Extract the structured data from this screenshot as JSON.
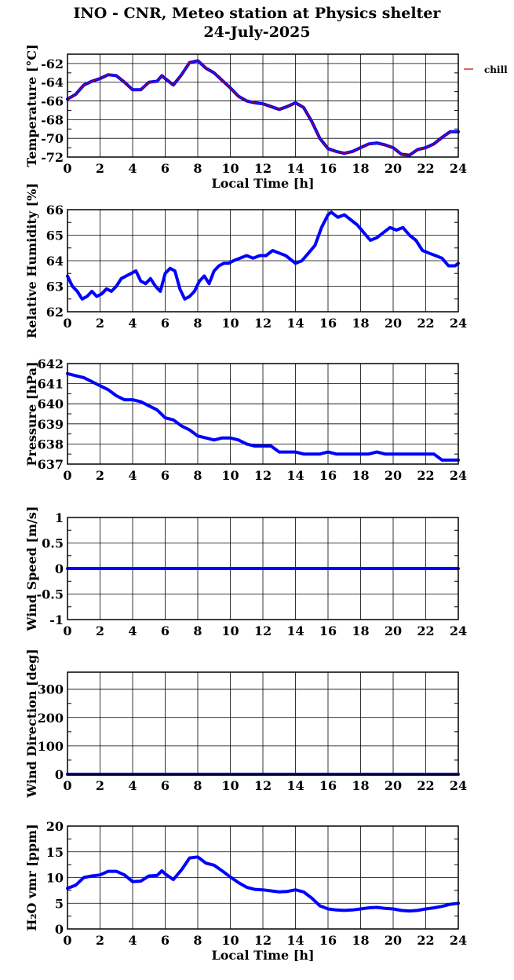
{
  "title": "INO - CNR, Meteo station at Physics shelter",
  "subtitle": "24-July-2025",
  "colors": {
    "series": "#0000ff",
    "chill": "#cc0000",
    "axes": "#000000"
  },
  "chart_data": [
    {
      "id": "temperature",
      "type": "line",
      "ylabel": "Temperature [°C]",
      "xlabel": "Local Time [h]",
      "xlim": [
        0,
        24
      ],
      "ylim": [
        -72,
        -61
      ],
      "yticks": [
        -72,
        -70,
        -68,
        -66,
        -64,
        -62
      ],
      "xticks": [
        0,
        2,
        4,
        6,
        8,
        10,
        12,
        14,
        16,
        18,
        20,
        22,
        24
      ],
      "grid": true,
      "legend": {
        "entries": [
          "chill"
        ],
        "placement": "right"
      },
      "series": [
        {
          "name": "chill",
          "x": [
            0,
            0.5,
            1,
            1.5,
            2,
            2.5,
            3,
            3.5,
            4,
            4.5,
            5,
            5.5,
            5.8,
            6,
            6.5,
            7,
            7.5,
            8,
            8.5,
            9,
            9.5,
            10,
            10.5,
            11,
            11.5,
            12,
            12.5,
            13,
            13.5,
            14,
            14.5,
            15,
            15.5,
            16,
            16.5,
            17,
            17.5,
            18,
            18.5,
            19,
            19.5,
            20,
            20.5,
            21,
            21.5,
            22,
            22.5,
            23,
            23.5,
            24
          ],
          "y": [
            -65.8,
            -65.3,
            -64.3,
            -63.9,
            -63.6,
            -63.2,
            -63.3,
            -64.0,
            -64.8,
            -64.8,
            -64.0,
            -63.9,
            -63.3,
            -63.6,
            -64.3,
            -63.2,
            -61.9,
            -61.7,
            -62.5,
            -63.0,
            -63.8,
            -64.6,
            -65.5,
            -66.0,
            -66.2,
            -66.3,
            -66.6,
            -66.9,
            -66.6,
            -66.2,
            -66.7,
            -68.2,
            -70.0,
            -71.1,
            -71.4,
            -71.6,
            -71.4,
            -71.0,
            -70.6,
            -70.5,
            -70.7,
            -71.0,
            -71.7,
            -71.8,
            -71.2,
            -71.0,
            -70.6,
            -69.9,
            -69.3,
            -69.3
          ]
        }
      ]
    },
    {
      "id": "humidity",
      "type": "line",
      "ylabel": "Relative Humidity [%]",
      "xlim": [
        0,
        24
      ],
      "ylim": [
        62,
        66
      ],
      "yticks": [
        62,
        63,
        64,
        65,
        66
      ],
      "xticks": [
        0,
        2,
        4,
        6,
        8,
        10,
        12,
        14,
        16,
        18,
        20,
        22,
        24
      ],
      "grid": true,
      "series": [
        {
          "x": [
            0,
            0.3,
            0.6,
            0.9,
            1.2,
            1.5,
            1.8,
            2.1,
            2.4,
            2.7,
            3.0,
            3.3,
            3.6,
            3.9,
            4.2,
            4.5,
            4.8,
            5.1,
            5.4,
            5.7,
            6.0,
            6.3,
            6.6,
            6.9,
            7.2,
            7.5,
            7.8,
            8.1,
            8.4,
            8.7,
            9.0,
            9.3,
            9.6,
            9.9,
            10.2,
            10.6,
            11.0,
            11.4,
            11.8,
            12.2,
            12.6,
            13.0,
            13.4,
            13.8,
            14.0,
            14.4,
            14.8,
            15.2,
            15.6,
            16.0,
            16.2,
            16.6,
            17.0,
            17.4,
            17.8,
            18.2,
            18.6,
            19.0,
            19.4,
            19.8,
            20.2,
            20.6,
            21.0,
            21.4,
            21.8,
            22.2,
            22.6,
            23.0,
            23.4,
            23.8,
            24.0
          ],
          "y": [
            63.4,
            63.0,
            62.8,
            62.5,
            62.6,
            62.8,
            62.6,
            62.7,
            62.9,
            62.8,
            63.0,
            63.3,
            63.4,
            63.5,
            63.6,
            63.2,
            63.1,
            63.3,
            63.0,
            62.8,
            63.5,
            63.7,
            63.6,
            62.9,
            62.5,
            62.6,
            62.8,
            63.2,
            63.4,
            63.1,
            63.6,
            63.8,
            63.9,
            63.9,
            64.0,
            64.1,
            64.2,
            64.1,
            64.2,
            64.2,
            64.4,
            64.3,
            64.2,
            64.0,
            63.9,
            64.0,
            64.3,
            64.6,
            65.3,
            65.8,
            65.9,
            65.7,
            65.8,
            65.6,
            65.4,
            65.1,
            64.8,
            64.9,
            65.1,
            65.3,
            65.2,
            65.3,
            65.0,
            64.8,
            64.4,
            64.3,
            64.2,
            64.1,
            63.8,
            63.8,
            63.9
          ]
        }
      ]
    },
    {
      "id": "pressure",
      "type": "line",
      "ylabel": "Pressure [hPa]",
      "xlim": [
        0,
        24
      ],
      "ylim": [
        637,
        642
      ],
      "yticks": [
        637,
        638,
        639,
        640,
        641,
        642
      ],
      "xticks": [
        0,
        2,
        4,
        6,
        8,
        10,
        12,
        14,
        16,
        18,
        20,
        22,
        24
      ],
      "grid": true,
      "series": [
        {
          "x": [
            0,
            0.5,
            1,
            1.5,
            2,
            2.5,
            3,
            3.5,
            4,
            4.5,
            5,
            5.5,
            6,
            6.5,
            7,
            7.5,
            8,
            8.5,
            9,
            9.5,
            10,
            10.5,
            11,
            11.5,
            12,
            12.5,
            13,
            13.5,
            14,
            14.5,
            15,
            15.5,
            16,
            16.5,
            17,
            17.5,
            18,
            18.5,
            19,
            19.5,
            20,
            20.5,
            21,
            21.5,
            22,
            22.5,
            23,
            23.5,
            24
          ],
          "y": [
            641.5,
            641.4,
            641.3,
            641.1,
            640.9,
            640.7,
            640.4,
            640.2,
            640.2,
            640.1,
            639.9,
            639.7,
            639.3,
            639.2,
            638.9,
            638.7,
            638.4,
            638.3,
            638.2,
            638.3,
            638.3,
            638.2,
            638.0,
            637.9,
            637.9,
            637.9,
            637.6,
            637.6,
            637.6,
            637.5,
            637.5,
            637.5,
            637.6,
            637.5,
            637.5,
            637.5,
            637.5,
            637.5,
            637.6,
            637.5,
            637.5,
            637.5,
            637.5,
            637.5,
            637.5,
            637.5,
            637.2,
            637.2,
            637.2
          ]
        }
      ]
    },
    {
      "id": "wind-speed",
      "type": "line",
      "ylabel": "Wind Speed [m/s]",
      "xlim": [
        0,
        24
      ],
      "ylim": [
        -1,
        1
      ],
      "yticks": [
        -1,
        -0.5,
        0,
        0.5,
        1
      ],
      "xticks": [
        0,
        2,
        4,
        6,
        8,
        10,
        12,
        14,
        16,
        18,
        20,
        22,
        24
      ],
      "grid": true,
      "series": [
        {
          "x": [
            0,
            24
          ],
          "y": [
            0,
            0
          ]
        }
      ]
    },
    {
      "id": "wind-direction",
      "type": "line",
      "ylabel": "Wind Direction [deg]",
      "xlim": [
        0,
        24
      ],
      "ylim": [
        0,
        360
      ],
      "yticks": [
        0,
        100,
        200,
        300
      ],
      "xticks": [
        0,
        2,
        4,
        6,
        8,
        10,
        12,
        14,
        16,
        18,
        20,
        22,
        24
      ],
      "grid": true,
      "series": [
        {
          "x": [
            0,
            24
          ],
          "y": [
            0,
            0
          ]
        }
      ]
    },
    {
      "id": "h2o-vmr",
      "type": "line",
      "ylabel": "H₂O vmr [ppm]",
      "xlabel": "Local Time [h]",
      "xlim": [
        0,
        24
      ],
      "ylim": [
        0,
        20
      ],
      "yticks": [
        0,
        5,
        10,
        15,
        20
      ],
      "xticks": [
        0,
        2,
        4,
        6,
        8,
        10,
        12,
        14,
        16,
        18,
        20,
        22,
        24
      ],
      "grid": true,
      "series": [
        {
          "x": [
            0,
            0.5,
            1,
            1.5,
            2,
            2.5,
            3,
            3.5,
            4,
            4.5,
            5,
            5.5,
            5.8,
            6,
            6.5,
            7,
            7.5,
            8,
            8.5,
            9,
            9.5,
            10,
            10.5,
            11,
            11.5,
            12,
            12.5,
            13,
            13.5,
            14,
            14.5,
            15,
            15.5,
            16,
            16.5,
            17,
            17.5,
            18,
            18.5,
            19,
            19.5,
            20,
            20.5,
            21,
            21.5,
            22,
            22.5,
            23,
            23.5,
            24
          ],
          "y": [
            7.9,
            8.5,
            10.0,
            10.3,
            10.5,
            11.2,
            11.2,
            10.5,
            9.2,
            9.3,
            10.3,
            10.4,
            11.3,
            10.7,
            9.6,
            11.5,
            13.8,
            14.0,
            12.8,
            12.4,
            11.3,
            10.1,
            9.0,
            8.1,
            7.7,
            7.6,
            7.4,
            7.2,
            7.3,
            7.6,
            7.2,
            6.0,
            4.5,
            3.9,
            3.7,
            3.6,
            3.7,
            3.9,
            4.1,
            4.2,
            4.0,
            3.9,
            3.6,
            3.5,
            3.6,
            3.9,
            4.1,
            4.4,
            4.8,
            5.0
          ]
        }
      ]
    }
  ]
}
